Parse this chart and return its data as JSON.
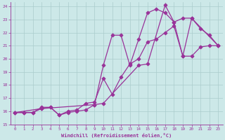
{
  "xlabel": "Windchill (Refroidissement éolien,°C)",
  "bg_color": "#cce8e8",
  "grid_color": "#aacccc",
  "line_color": "#993399",
  "xlim": [
    -0.5,
    23.5
  ],
  "ylim": [
    15,
    24.3
  ],
  "yticks": [
    15,
    16,
    17,
    18,
    19,
    20,
    21,
    22,
    23,
    24
  ],
  "xticks": [
    0,
    1,
    2,
    3,
    4,
    5,
    6,
    7,
    8,
    9,
    10,
    11,
    12,
    13,
    14,
    15,
    16,
    17,
    18,
    19,
    20,
    21,
    22,
    23
  ],
  "line1_x": [
    0,
    1,
    2,
    3,
    4,
    5,
    6,
    7,
    8,
    9,
    10,
    11,
    12,
    13,
    14,
    15,
    16,
    17,
    18,
    19,
    20,
    21,
    22,
    23
  ],
  "line1_y": [
    15.9,
    15.9,
    15.9,
    16.2,
    16.3,
    15.7,
    15.9,
    16.0,
    16.1,
    16.5,
    19.5,
    21.8,
    21.8,
    19.5,
    21.5,
    23.5,
    23.8,
    23.5,
    22.8,
    23.1,
    23.1,
    22.3,
    21.8,
    21.0
  ],
  "line2_x": [
    0,
    1,
    2,
    3,
    4,
    5,
    6,
    7,
    8,
    9,
    10,
    11,
    12,
    13,
    14,
    15,
    16,
    17,
    18,
    19,
    20,
    21,
    22,
    23
  ],
  "line2_y": [
    15.9,
    15.9,
    15.9,
    16.3,
    16.3,
    15.7,
    16.0,
    16.1,
    16.6,
    16.7,
    18.5,
    17.3,
    18.6,
    19.6,
    20.0,
    21.3,
    21.5,
    22.0,
    22.5,
    20.2,
    20.2,
    20.9,
    21.0,
    21.0
  ],
  "line3_x": [
    0,
    3,
    9,
    10,
    14,
    15,
    17,
    18,
    19,
    20,
    23
  ],
  "line3_y": [
    15.9,
    16.2,
    16.5,
    16.6,
    19.5,
    19.6,
    24.1,
    22.8,
    20.2,
    23.1,
    21.0
  ]
}
